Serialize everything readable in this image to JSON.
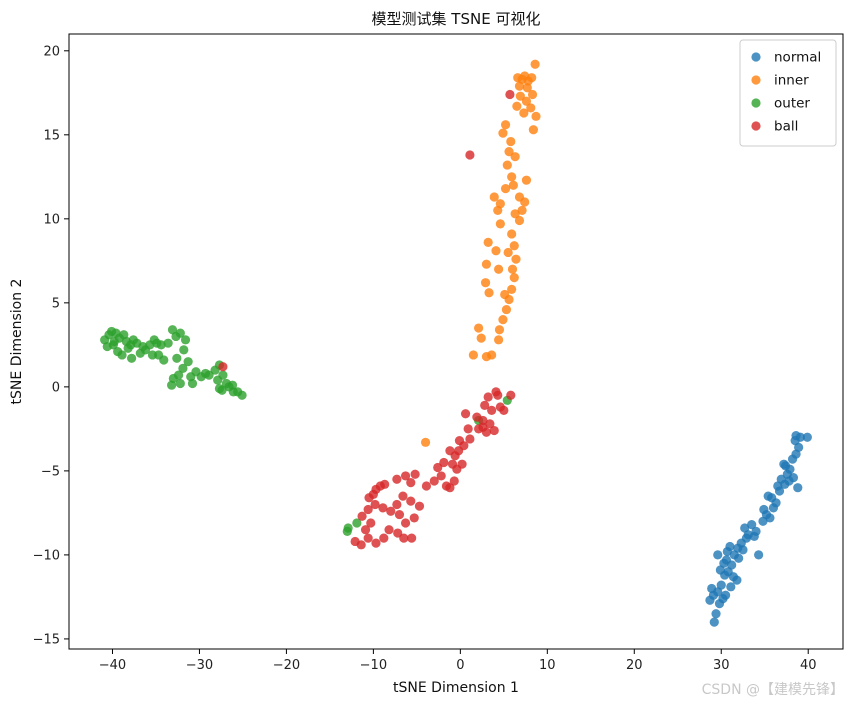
{
  "chart_data": {
    "type": "scatter",
    "title": "模型测试集 TSNE 可视化",
    "xlabel": "tSNE Dimension 1",
    "ylabel": "tSNE Dimension 2",
    "xlim": [
      -45,
      44
    ],
    "ylim": [
      -15.6,
      21
    ],
    "xticks": [
      -40,
      -30,
      -20,
      -10,
      0,
      10,
      20,
      30,
      40
    ],
    "yticks": [
      -15,
      -10,
      -5,
      0,
      5,
      10,
      15,
      20
    ],
    "legend_position": "top-right",
    "grid": false,
    "series": [
      {
        "name": "normal",
        "color": "#1f77b4",
        "points": [
          [
            29.2,
            -14.0
          ],
          [
            29.4,
            -13.5
          ],
          [
            28.7,
            -12.7
          ],
          [
            29.1,
            -12.4
          ],
          [
            28.9,
            -12.0
          ],
          [
            29.8,
            -12.9
          ],
          [
            30.2,
            -12.6
          ],
          [
            29.6,
            -12.2
          ],
          [
            30.0,
            -11.8
          ],
          [
            30.4,
            -11.2
          ],
          [
            29.9,
            -10.9
          ],
          [
            30.3,
            -10.5
          ],
          [
            29.6,
            -10.0
          ],
          [
            30.6,
            -10.3
          ],
          [
            30.8,
            -11.0
          ],
          [
            31.2,
            -10.6
          ],
          [
            30.7,
            -9.8
          ],
          [
            31.5,
            -10.0
          ],
          [
            31.9,
            -9.6
          ],
          [
            31.0,
            -9.5
          ],
          [
            32.3,
            -9.3
          ],
          [
            32.0,
            -10.2
          ],
          [
            31.4,
            -11.3
          ],
          [
            31.8,
            -11.5
          ],
          [
            32.7,
            -8.4
          ],
          [
            33.1,
            -8.8
          ],
          [
            33.5,
            -8.2
          ],
          [
            34.0,
            -8.6
          ],
          [
            34.3,
            -10.0
          ],
          [
            34.8,
            -8.0
          ],
          [
            35.2,
            -7.6
          ],
          [
            35.6,
            -7.8
          ],
          [
            36.0,
            -7.2
          ],
          [
            35.4,
            -6.5
          ],
          [
            36.3,
            -6.9
          ],
          [
            36.7,
            -6.2
          ],
          [
            36.9,
            -5.5
          ],
          [
            37.3,
            -5.8
          ],
          [
            37.6,
            -5.2
          ],
          [
            37.9,
            -4.9
          ],
          [
            37.4,
            -4.7
          ],
          [
            38.3,
            -5.4
          ],
          [
            38.2,
            -4.3
          ],
          [
            38.6,
            -4.0
          ],
          [
            38.9,
            -3.6
          ],
          [
            38.5,
            -3.2
          ],
          [
            39.1,
            -3.0
          ],
          [
            38.6,
            -2.9
          ],
          [
            39.9,
            -3.0
          ],
          [
            38.8,
            -6.0
          ],
          [
            37.2,
            -4.6
          ],
          [
            36.5,
            -5.9
          ],
          [
            34.9,
            -7.3
          ],
          [
            33.8,
            -8.9
          ],
          [
            32.5,
            -9.7
          ],
          [
            31.1,
            -11.9
          ],
          [
            30.5,
            -12.4
          ],
          [
            32.9,
            -9.0
          ],
          [
            35.8,
            -6.6
          ],
          [
            37.8,
            -5.6
          ]
        ]
      },
      {
        "name": "inner",
        "color": "#ff7f0e",
        "points": [
          [
            -4.0,
            -3.3
          ],
          [
            1.5,
            1.9
          ],
          [
            3.0,
            1.8
          ],
          [
            3.6,
            1.9
          ],
          [
            2.4,
            2.9
          ],
          [
            4.4,
            2.8
          ],
          [
            2.1,
            3.5
          ],
          [
            4.5,
            3.4
          ],
          [
            4.9,
            4.0
          ],
          [
            5.3,
            4.6
          ],
          [
            5.6,
            5.2
          ],
          [
            5.1,
            5.5
          ],
          [
            5.9,
            5.8
          ],
          [
            3.3,
            5.6
          ],
          [
            2.9,
            6.2
          ],
          [
            6.2,
            6.5
          ],
          [
            6.0,
            7.0
          ],
          [
            4.4,
            7.0
          ],
          [
            3.0,
            7.3
          ],
          [
            6.4,
            7.6
          ],
          [
            5.5,
            8.0
          ],
          [
            4.1,
            8.1
          ],
          [
            6.2,
            8.4
          ],
          [
            3.2,
            8.6
          ],
          [
            5.9,
            9.1
          ],
          [
            4.6,
            9.7
          ],
          [
            6.8,
            9.9
          ],
          [
            6.3,
            10.3
          ],
          [
            4.3,
            10.5
          ],
          [
            4.6,
            10.9
          ],
          [
            7.1,
            10.5
          ],
          [
            7.4,
            11.0
          ],
          [
            6.8,
            11.3
          ],
          [
            3.9,
            11.3
          ],
          [
            5.2,
            11.8
          ],
          [
            6.1,
            12.0
          ],
          [
            7.6,
            12.3
          ],
          [
            5.9,
            12.5
          ],
          [
            5.4,
            13.2
          ],
          [
            6.3,
            13.7
          ],
          [
            5.6,
            14.0
          ],
          [
            5.8,
            14.6
          ],
          [
            4.9,
            15.1
          ],
          [
            5.2,
            15.6
          ],
          [
            8.4,
            15.3
          ],
          [
            8.7,
            16.1
          ],
          [
            7.3,
            16.3
          ],
          [
            8.1,
            16.6
          ],
          [
            6.5,
            16.7
          ],
          [
            7.6,
            17.0
          ],
          [
            6.9,
            17.3
          ],
          [
            8.3,
            17.4
          ],
          [
            7.7,
            17.8
          ],
          [
            6.8,
            17.9
          ],
          [
            7.8,
            18.2
          ],
          [
            6.6,
            18.4
          ],
          [
            7.4,
            18.5
          ],
          [
            7.1,
            18.3
          ],
          [
            8.6,
            19.2
          ],
          [
            8.2,
            18.4
          ]
        ]
      },
      {
        "name": "outer",
        "color": "#2ca02c",
        "points": [
          [
            -40.9,
            2.8
          ],
          [
            -40.4,
            3.1
          ],
          [
            -40.1,
            3.3
          ],
          [
            -39.6,
            3.2
          ],
          [
            -39.2,
            2.9
          ],
          [
            -38.7,
            3.1
          ],
          [
            -38.4,
            2.7
          ],
          [
            -37.9,
            2.5
          ],
          [
            -37.6,
            2.8
          ],
          [
            -37.2,
            2.6
          ],
          [
            -40.6,
            2.4
          ],
          [
            -39.9,
            2.5
          ],
          [
            -39.4,
            2.1
          ],
          [
            -38.9,
            1.9
          ],
          [
            -38.2,
            2.3
          ],
          [
            -37.8,
            1.7
          ],
          [
            -36.8,
            2.0
          ],
          [
            -36.2,
            2.2
          ],
          [
            -35.7,
            2.5
          ],
          [
            -35.2,
            2.8
          ],
          [
            -34.9,
            2.6
          ],
          [
            -34.4,
            2.5
          ],
          [
            -34.7,
            1.9
          ],
          [
            -34.1,
            1.6
          ],
          [
            -33.6,
            2.6
          ],
          [
            -33.1,
            3.4
          ],
          [
            -32.7,
            3.0
          ],
          [
            -32.2,
            3.2
          ],
          [
            -31.6,
            2.8
          ],
          [
            -31.8,
            2.2
          ],
          [
            -32.6,
            1.7
          ],
          [
            -31.3,
            1.5
          ],
          [
            -31.9,
            1.1
          ],
          [
            -32.4,
            0.7
          ],
          [
            -33.0,
            0.5
          ],
          [
            -33.2,
            0.1
          ],
          [
            -32.2,
            0.2
          ],
          [
            -31.0,
            0.6
          ],
          [
            -30.4,
            0.9
          ],
          [
            -29.8,
            0.6
          ],
          [
            -29.3,
            0.8
          ],
          [
            -28.2,
            1.0
          ],
          [
            -27.7,
            1.3
          ],
          [
            -27.9,
            0.4
          ],
          [
            -27.3,
            0.7
          ],
          [
            -26.9,
            0.2
          ],
          [
            -27.4,
            -0.2
          ],
          [
            -26.6,
            0.0
          ],
          [
            -26.1,
            -0.3
          ],
          [
            -25.6,
            -0.3
          ],
          [
            -25.1,
            -0.5
          ],
          [
            -26.2,
            0.1
          ],
          [
            -27.7,
            -0.1
          ],
          [
            -28.9,
            0.7
          ],
          [
            -30.8,
            0.2
          ],
          [
            -35.4,
            1.9
          ],
          [
            -36.5,
            2.4
          ],
          [
            -39.8,
            2.7
          ],
          [
            -13.0,
            -8.6
          ],
          [
            -12.9,
            -8.4
          ],
          [
            -11.9,
            -8.1
          ],
          [
            2.1,
            -2.0
          ],
          [
            5.4,
            -0.8
          ]
        ]
      },
      {
        "name": "ball",
        "color": "#d62728",
        "points": [
          [
            -27.3,
            1.2
          ],
          [
            5.7,
            17.4
          ],
          [
            1.1,
            13.8
          ],
          [
            -12.1,
            -9.2
          ],
          [
            -11.4,
            -9.4
          ],
          [
            -10.6,
            -9.0
          ],
          [
            -9.7,
            -9.3
          ],
          [
            -8.8,
            -9.0
          ],
          [
            -8.2,
            -8.5
          ],
          [
            -7.2,
            -8.7
          ],
          [
            -6.5,
            -9.0
          ],
          [
            -5.6,
            -9.0
          ],
          [
            -6.3,
            -8.1
          ],
          [
            -7.0,
            -7.6
          ],
          [
            -5.3,
            -7.8
          ],
          [
            -10.9,
            -8.5
          ],
          [
            -10.3,
            -8.1
          ],
          [
            -11.3,
            -7.7
          ],
          [
            -10.6,
            -7.3
          ],
          [
            -9.8,
            -7.0
          ],
          [
            -8.9,
            -7.2
          ],
          [
            -8.0,
            -7.4
          ],
          [
            -7.3,
            -7.0
          ],
          [
            -6.6,
            -6.5
          ],
          [
            -5.7,
            -6.8
          ],
          [
            -4.7,
            -7.1
          ],
          [
            -10.5,
            -6.6
          ],
          [
            -9.7,
            -6.1
          ],
          [
            -8.7,
            -5.8
          ],
          [
            -7.3,
            -5.5
          ],
          [
            -6.3,
            -5.3
          ],
          [
            -5.2,
            -5.2
          ],
          [
            -5.7,
            -5.7
          ],
          [
            -10.0,
            -6.4
          ],
          [
            -9.2,
            -5.9
          ],
          [
            -3.9,
            -5.9
          ],
          [
            -3.0,
            -5.6
          ],
          [
            -2.2,
            -5.3
          ],
          [
            -1.6,
            -5.9
          ],
          [
            -1.2,
            -6.0
          ],
          [
            -0.7,
            -5.6
          ],
          [
            -2.6,
            -4.8
          ],
          [
            -1.9,
            -4.5
          ],
          [
            -0.9,
            -4.6
          ],
          [
            -0.4,
            -4.9
          ],
          [
            0.2,
            -4.6
          ],
          [
            -0.6,
            -4.1
          ],
          [
            -0.2,
            -3.8
          ],
          [
            0.4,
            -3.5
          ],
          [
            -0.1,
            -3.2
          ],
          [
            1.1,
            -3.1
          ],
          [
            -1.2,
            -3.8
          ],
          [
            0.9,
            -2.5
          ],
          [
            0.6,
            -1.6
          ],
          [
            1.9,
            -1.8
          ],
          [
            2.1,
            -2.5
          ],
          [
            2.6,
            -2.4
          ],
          [
            3.0,
            -2.7
          ],
          [
            3.4,
            -2.2
          ],
          [
            3.9,
            -2.6
          ],
          [
            2.8,
            -1.1
          ],
          [
            3.6,
            -1.4
          ],
          [
            3.2,
            -0.6
          ],
          [
            4.3,
            -0.5
          ],
          [
            4.6,
            -1.2
          ],
          [
            4.1,
            -0.3
          ],
          [
            5.0,
            -1.4
          ],
          [
            5.8,
            -0.5
          ],
          [
            2.6,
            -2.0
          ]
        ]
      }
    ]
  },
  "watermark": "CSDN @【建模先锋】"
}
